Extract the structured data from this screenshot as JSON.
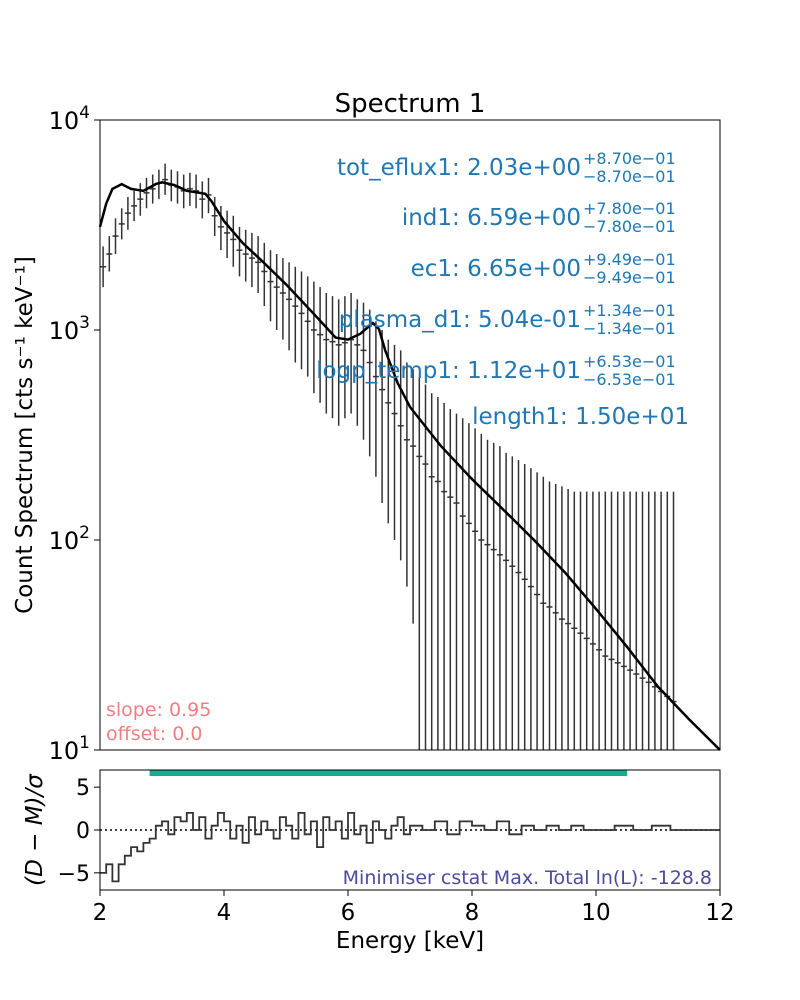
{
  "chart_data": [
    {
      "type": "line",
      "title": "Spectrum 1",
      "xlabel": "",
      "ylabel": "Count Spectrum [cts s⁻¹ keV⁻¹]",
      "xlim": [
        2,
        12
      ],
      "ylim": [
        10,
        10000
      ],
      "yscale": "log",
      "grid": false,
      "y_ticks": [
        {
          "value": 10,
          "base": "10",
          "exp": "1"
        },
        {
          "value": 100,
          "base": "10",
          "exp": "2"
        },
        {
          "value": 1000,
          "base": "10",
          "exp": "3"
        },
        {
          "value": 10000,
          "base": "10",
          "exp": "4"
        }
      ],
      "model_curve": {
        "x": [
          2.0,
          2.1,
          2.2,
          2.35,
          2.5,
          2.7,
          2.9,
          3.0,
          3.2,
          3.4,
          3.6,
          3.7,
          3.8,
          4.0,
          4.3,
          4.6,
          5.0,
          5.5,
          5.8,
          6.0,
          6.2,
          6.4,
          6.5,
          6.6,
          6.8,
          7.0,
          7.5,
          8.0,
          8.5,
          9.0,
          9.5,
          10.0,
          10.5,
          11.0,
          11.5,
          12.0
        ],
        "y": [
          3100,
          4000,
          4700,
          4950,
          4700,
          4600,
          4950,
          5050,
          4900,
          4600,
          4500,
          4450,
          4100,
          3300,
          2600,
          2150,
          1650,
          1150,
          920,
          900,
          960,
          1080,
          1010,
          800,
          560,
          430,
          280,
          195,
          140,
          100,
          70,
          47,
          31,
          20,
          14,
          9.5
        ]
      },
      "data_points": {
        "x": [
          2.05,
          2.15,
          2.25,
          2.35,
          2.45,
          2.55,
          2.65,
          2.75,
          2.85,
          2.95,
          3.05,
          3.15,
          3.25,
          3.35,
          3.45,
          3.55,
          3.65,
          3.75,
          3.85,
          3.95,
          4.05,
          4.15,
          4.25,
          4.35,
          4.45,
          4.55,
          4.65,
          4.75,
          4.85,
          4.95,
          5.05,
          5.15,
          5.25,
          5.35,
          5.45,
          5.55,
          5.65,
          5.75,
          5.85,
          5.95,
          6.05,
          6.15,
          6.25,
          6.35,
          6.45,
          6.55,
          6.65,
          6.75,
          6.85,
          6.95,
          7.05,
          7.15,
          7.25,
          7.35,
          7.45,
          7.55,
          7.65,
          7.75,
          7.85,
          7.95,
          8.05,
          8.15,
          8.25,
          8.35,
          8.45,
          8.55,
          8.65,
          8.75,
          8.85,
          8.95,
          9.05,
          9.15,
          9.25,
          9.35,
          9.45,
          9.55,
          9.65,
          9.75,
          9.85,
          9.95,
          10.05,
          10.15,
          10.25,
          10.35,
          10.45,
          10.55,
          10.65,
          10.75,
          10.85,
          10.95,
          11.05,
          11.15,
          11.25
        ],
        "y": [
          2000,
          2300,
          2800,
          3200,
          3600,
          3900,
          4200,
          4500,
          4700,
          5000,
          5200,
          4900,
          4800,
          4600,
          4700,
          4600,
          4200,
          4400,
          3500,
          3100,
          2900,
          2700,
          2400,
          2300,
          2200,
          2100,
          1900,
          1700,
          1600,
          1500,
          1400,
          1300,
          1200,
          1100,
          1000,
          950,
          900,
          880,
          850,
          870,
          900,
          850,
          800,
          700,
          600,
          520,
          450,
          400,
          350,
          300,
          280,
          250,
          230,
          200,
          190,
          170,
          160,
          150,
          130,
          120,
          110,
          100,
          95,
          90,
          85,
          80,
          75,
          70,
          65,
          60,
          55,
          50,
          48,
          45,
          42,
          40,
          38,
          36,
          34,
          32,
          30,
          28,
          27,
          26,
          25,
          24,
          23,
          22,
          21,
          20,
          19,
          18,
          17
        ],
        "y_low": [
          1600,
          1900,
          2300,
          2700,
          3000,
          3300,
          3500,
          3800,
          4000,
          4200,
          4400,
          4100,
          4000,
          3800,
          3900,
          3800,
          3400,
          3600,
          2800,
          2400,
          2200,
          2000,
          1800,
          1700,
          1600,
          1500,
          1300,
          1100,
          1000,
          900,
          800,
          700,
          650,
          600,
          500,
          450,
          400,
          380,
          350,
          380,
          400,
          350,
          300,
          250,
          200,
          150,
          120,
          100,
          80,
          60,
          40,
          10,
          10,
          10,
          10,
          10,
          10,
          10,
          10,
          10,
          10,
          10,
          10,
          10,
          10,
          10,
          10,
          10,
          10,
          10,
          10,
          10,
          10,
          10,
          10,
          10,
          10,
          10,
          10,
          10,
          10,
          10,
          10,
          10,
          10,
          10,
          10,
          10,
          10,
          10,
          10,
          10,
          10
        ],
        "y_high": [
          2500,
          2800,
          3400,
          3800,
          4300,
          4600,
          5000,
          5300,
          5500,
          5800,
          6200,
          5800,
          5700,
          5500,
          5600,
          5500,
          5100,
          5300,
          4300,
          3900,
          3700,
          3500,
          3100,
          3000,
          2900,
          2800,
          2600,
          2400,
          2300,
          2200,
          2100,
          2000,
          1900,
          1800,
          1700,
          1600,
          1500,
          1450,
          1400,
          1450,
          1500,
          1400,
          1350,
          1250,
          1100,
          1000,
          900,
          850,
          800,
          700,
          650,
          600,
          550,
          500,
          480,
          450,
          420,
          400,
          380,
          360,
          340,
          320,
          300,
          290,
          280,
          260,
          250,
          240,
          230,
          220,
          210,
          200,
          190,
          185,
          180,
          175,
          170,
          170,
          170,
          170,
          170,
          170,
          170,
          170,
          170,
          170,
          170,
          170,
          170,
          170,
          170,
          170,
          170
        ]
      },
      "annotations": [
        {
          "name": "tot_eflux1",
          "value": "2.03e+00",
          "up": "+8.70e−01",
          "down": "−8.70e−01"
        },
        {
          "name": "ind1",
          "value": "6.59e+00",
          "up": "+7.80e−01",
          "down": "−7.80e−01"
        },
        {
          "name": "ec1",
          "value": "6.65e+00",
          "up": "+9.49e−01",
          "down": "−9.49e−01"
        },
        {
          "name": "plasma_d1",
          "value": "5.04e-01",
          "up": "+1.34e−01",
          "down": "−1.34e−01"
        },
        {
          "name": "logp_temp1",
          "value": "1.12e+01",
          "up": "+6.53e−01",
          "down": "−6.53e−01"
        },
        {
          "name": "length1",
          "value": "1.50e+01",
          "up": "",
          "down": ""
        }
      ],
      "slope_label": "slope: 0.95",
      "offset_label": "offset: 0.0",
      "colors": {
        "annotation": "#1f77b4",
        "slope_offset": "#f08080",
        "model": "#000000",
        "data": "#333333"
      }
    },
    {
      "type": "line",
      "title": "",
      "xlabel": "Energy [keV]",
      "ylabel": "(D − M)/σ",
      "xlim": [
        2,
        12
      ],
      "ylim": [
        -7,
        7
      ],
      "x_ticks": [
        2,
        4,
        6,
        8,
        10,
        12
      ],
      "y_ticks": [
        -5,
        0,
        5
      ],
      "y_tick_labels": [
        "−5",
        "0",
        "5"
      ],
      "fit_range": [
        2.8,
        10.5
      ],
      "residuals": {
        "x": [
          2.0,
          2.1,
          2.2,
          2.3,
          2.4,
          2.5,
          2.6,
          2.7,
          2.8,
          2.9,
          3.0,
          3.1,
          3.2,
          3.3,
          3.4,
          3.5,
          3.6,
          3.7,
          3.8,
          3.9,
          4.0,
          4.1,
          4.2,
          4.3,
          4.4,
          4.5,
          4.6,
          4.7,
          4.8,
          4.9,
          5.0,
          5.1,
          5.2,
          5.3,
          5.4,
          5.5,
          5.6,
          5.7,
          5.8,
          5.9,
          6.0,
          6.1,
          6.2,
          6.3,
          6.4,
          6.5,
          6.6,
          6.7,
          6.8,
          6.9,
          7.0,
          7.2,
          7.4,
          7.6,
          7.8,
          8.0,
          8.2,
          8.4,
          8.6,
          8.8,
          9.0,
          9.2,
          9.4,
          9.6,
          9.8,
          10.0,
          10.3,
          10.6,
          10.9,
          11.2,
          11.5
        ],
        "y": [
          -5,
          -4,
          -6,
          -4,
          -3,
          -2,
          -2.5,
          -1.5,
          -1,
          0.5,
          1,
          -0.5,
          1.5,
          1,
          2,
          0,
          1.5,
          -1,
          0.5,
          2,
          1,
          -1,
          0.5,
          -1.5,
          1.5,
          -0.5,
          1,
          0,
          -1,
          1.5,
          0.5,
          -1,
          2,
          -0.5,
          1,
          -2,
          1.5,
          0,
          1,
          -1,
          2,
          -0.5,
          0.5,
          -1.5,
          1,
          0,
          -1,
          0.5,
          1.5,
          -0.5,
          0.5,
          0,
          1,
          -0.5,
          1,
          0.5,
          0,
          1,
          -0.5,
          0.5,
          0,
          0.5,
          0,
          0.5,
          0,
          0,
          0.5,
          0,
          0.5,
          0,
          0
        ]
      },
      "stat_label": "Minimiser cstat Max. Total ln(L): -128.8",
      "colors": {
        "fit_range": "#1aaa8f",
        "stat_label": "#4b4b9e"
      }
    }
  ]
}
